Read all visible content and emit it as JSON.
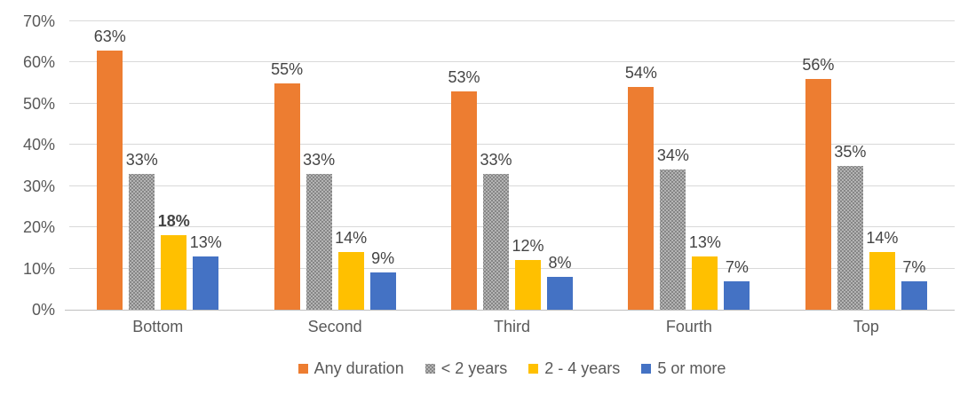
{
  "chart_data": {
    "type": "bar",
    "title": "",
    "categories": [
      "Bottom",
      "Second",
      "Third",
      "Fourth",
      "Top"
    ],
    "series": [
      {
        "name": "Any duration",
        "color": "#ED7D31",
        "pattern": "solid",
        "values": [
          63,
          55,
          53,
          54,
          56
        ]
      },
      {
        "name": "< 2 years",
        "color": "#A6A6A6",
        "pattern": "dots",
        "values": [
          33,
          33,
          33,
          34,
          35
        ]
      },
      {
        "name": "2 - 4 years",
        "color": "#FFC000",
        "pattern": "solid",
        "values": [
          18,
          14,
          12,
          13,
          14
        ]
      },
      {
        "name": "5 or more",
        "color": "#4472C4",
        "pattern": "solid",
        "values": [
          13,
          9,
          8,
          7,
          7
        ]
      }
    ],
    "ylim": [
      0,
      70
    ],
    "ytick_step": 10,
    "ytick_labels": [
      "0%",
      "10%",
      "20%",
      "30%",
      "40%",
      "50%",
      "60%",
      "70%"
    ],
    "data_label_suffix": "%",
    "grid": true,
    "legend_position": "bottom",
    "bold_value_labels": [
      {
        "category": "Bottom",
        "series": "2 - 4 years"
      }
    ]
  },
  "colors": {
    "gridline": "#D9D9D9",
    "axis_line": "#BFBFBF",
    "tick_text": "#595959",
    "value_label_text": "#444444",
    "background": "#FFFFFF"
  }
}
